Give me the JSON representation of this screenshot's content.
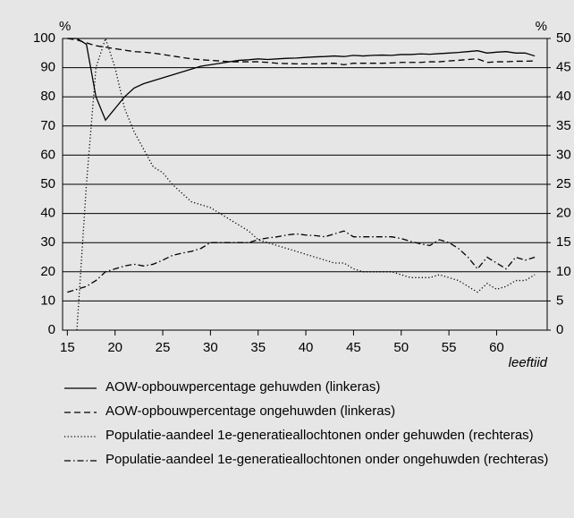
{
  "chart_data": {
    "type": "line",
    "x_label": "leeftijd",
    "y_label": "%",
    "y2_label": "%",
    "x": [
      15,
      16,
      17,
      18,
      19,
      20,
      21,
      22,
      23,
      24,
      25,
      26,
      27,
      28,
      29,
      30,
      31,
      32,
      33,
      34,
      35,
      36,
      37,
      38,
      39,
      40,
      41,
      42,
      43,
      44,
      45,
      46,
      47,
      48,
      49,
      50,
      51,
      52,
      53,
      54,
      55,
      56,
      57,
      58,
      59,
      60,
      61,
      62,
      63,
      64
    ],
    "xlim": [
      14.5,
      65.3
    ],
    "xticks": [
      15,
      20,
      25,
      30,
      35,
      40,
      45,
      50,
      55,
      60
    ],
    "ylim": [
      0,
      100
    ],
    "yticks": [
      0,
      10,
      20,
      30,
      40,
      50,
      60,
      70,
      80,
      90,
      100
    ],
    "y2lim": [
      0,
      50
    ],
    "y2ticks": [
      0,
      5,
      10,
      15,
      20,
      25,
      30,
      35,
      40,
      45,
      50
    ],
    "grid": true,
    "series": [
      {
        "name": "AOW-opbouwpercentage gehuwden (linkeras)",
        "color": "#000000",
        "line_style": "solid",
        "values": [
          100,
          100,
          98,
          80,
          72,
          76,
          80,
          83,
          84.5,
          85.5,
          86.5,
          87.5,
          88.5,
          89.5,
          90.5,
          91,
          91.5,
          92,
          92.5,
          92.7,
          93,
          92.8,
          93,
          93.2,
          93.3,
          93.5,
          93.7,
          93.8,
          94,
          93.8,
          94.2,
          94,
          94.2,
          94.3,
          94.2,
          94.5,
          94.5,
          94.7,
          94.6,
          94.8,
          95,
          95.2,
          95.5,
          95.8,
          95,
          95.3,
          95.5,
          95,
          95,
          94
        ]
      },
      {
        "name": "AOW-opbouwpercentage ongehuwden (linkeras)",
        "color": "#000000",
        "line_style": "dashed",
        "values": [
          100,
          99.5,
          98.5,
          97.5,
          97,
          96.5,
          96,
          95.5,
          95.3,
          95,
          94.5,
          94,
          93.5,
          93,
          92.7,
          92.5,
          92.3,
          92,
          92,
          92,
          92,
          91.8,
          91.5,
          91.4,
          91.3,
          91.3,
          91.3,
          91.4,
          91.5,
          91,
          91.5,
          91.5,
          91.5,
          91.5,
          91.6,
          91.8,
          91.8,
          91.8,
          92,
          92,
          92.3,
          92.5,
          92.8,
          93,
          91.8,
          92,
          92,
          92.2,
          92.2,
          92.3
        ]
      },
      {
        "name": "Populatie-aandeel 1e-generatieallochtonen onder gehuwden (rechteras)",
        "color": "#000000",
        "line_style": "dotted",
        "axis": "y2",
        "values": [
          null,
          0,
          25,
          45,
          50,
          45,
          38,
          34,
          31,
          28,
          27,
          25,
          23.5,
          22,
          21.5,
          21,
          20,
          19,
          18,
          17,
          15.5,
          15,
          14.5,
          14,
          13.5,
          13,
          12.5,
          12,
          11.5,
          11.5,
          10.5,
          10,
          10,
          10,
          10,
          9.5,
          9,
          9,
          9,
          9.5,
          9,
          8.5,
          7.5,
          6.5,
          8,
          7,
          7.5,
          8.5,
          8.5,
          9.5
        ]
      },
      {
        "name": "Populatie-aandeel 1e-generatieallochtonen onder ongehuwden (rechteras)",
        "color": "#000000",
        "line_style": "dashdot",
        "axis": "y2",
        "values": [
          6.5,
          7,
          7.5,
          8.5,
          10,
          10.5,
          11,
          11.3,
          11,
          11.3,
          12,
          12.8,
          13.2,
          13.5,
          14,
          15,
          15,
          15,
          15,
          15,
          15.5,
          15.8,
          16,
          16.3,
          16.5,
          16.3,
          16.2,
          16,
          16.5,
          17,
          16,
          16,
          16,
          16,
          16,
          15.7,
          15.2,
          14.8,
          14.5,
          15.5,
          15,
          14,
          12.5,
          10.5,
          12.5,
          11.5,
          10.5,
          12.5,
          12,
          12.5
        ]
      }
    ]
  }
}
